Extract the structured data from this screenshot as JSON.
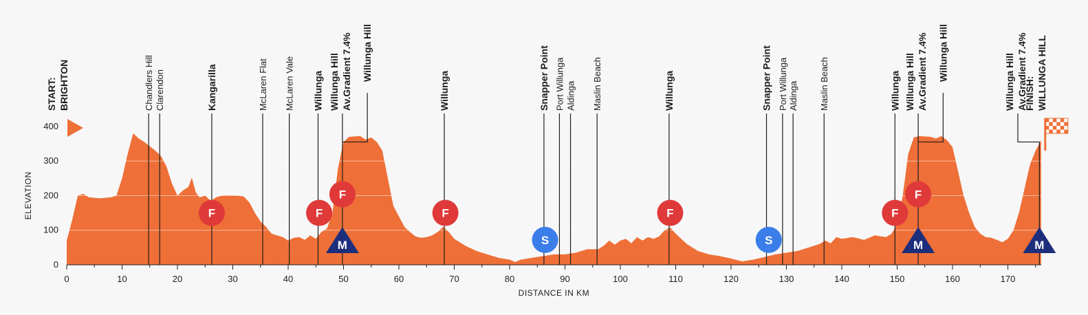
{
  "colors": {
    "profile": "#ee6f37",
    "feed": "#e0393a",
    "sprint": "#3b7de9",
    "kom": "#1c2e7c",
    "grid": "#ffffff",
    "text": "#1d1d1d",
    "background": "#f7f7f7"
  },
  "chart_data": {
    "type": "area",
    "xlabel": "DISTANCE IN KM",
    "ylabel": "ELEVATION",
    "xlim": [
      0,
      176
    ],
    "ylim": [
      0,
      420
    ],
    "x_ticks": [
      0,
      10,
      20,
      30,
      40,
      50,
      60,
      70,
      80,
      90,
      100,
      110,
      120,
      130,
      140,
      150,
      160,
      170
    ],
    "y_ticks": [
      0,
      100,
      200,
      300,
      400
    ],
    "grid": true,
    "profile": [
      [
        0,
        70
      ],
      [
        1,
        130
      ],
      [
        2,
        200
      ],
      [
        3,
        205
      ],
      [
        4,
        195
      ],
      [
        6,
        192
      ],
      [
        8,
        195
      ],
      [
        9,
        200
      ],
      [
        10,
        250
      ],
      [
        11,
        320
      ],
      [
        12,
        380
      ],
      [
        13,
        365
      ],
      [
        14,
        355
      ],
      [
        16,
        330
      ],
      [
        17,
        315
      ],
      [
        18,
        285
      ],
      [
        19,
        235
      ],
      [
        20,
        200
      ],
      [
        21,
        215
      ],
      [
        22,
        225
      ],
      [
        22.6,
        252
      ],
      [
        23.3,
        210
      ],
      [
        24,
        195
      ],
      [
        25,
        200
      ],
      [
        26,
        185
      ],
      [
        27,
        195
      ],
      [
        28,
        200
      ],
      [
        29,
        201
      ],
      [
        31,
        200
      ],
      [
        32,
        197
      ],
      [
        33,
        180
      ],
      [
        34,
        150
      ],
      [
        35,
        125
      ],
      [
        36,
        110
      ],
      [
        37,
        90
      ],
      [
        38,
        85
      ],
      [
        39,
        80
      ],
      [
        40,
        70
      ],
      [
        41,
        78
      ],
      [
        42,
        80
      ],
      [
        43,
        72
      ],
      [
        44,
        85
      ],
      [
        45,
        75
      ],
      [
        46,
        95
      ],
      [
        47,
        105
      ],
      [
        48,
        150
      ],
      [
        49,
        280
      ],
      [
        50,
        355
      ],
      [
        51,
        370
      ],
      [
        53,
        372
      ],
      [
        54,
        362
      ],
      [
        55,
        368
      ],
      [
        56,
        355
      ],
      [
        57,
        330
      ],
      [
        58,
        250
      ],
      [
        59,
        170
      ],
      [
        60,
        140
      ],
      [
        61,
        110
      ],
      [
        62,
        95
      ],
      [
        63,
        82
      ],
      [
        64,
        78
      ],
      [
        65,
        80
      ],
      [
        66,
        85
      ],
      [
        67,
        95
      ],
      [
        68,
        110
      ],
      [
        69,
        95
      ],
      [
        70,
        75
      ],
      [
        72,
        55
      ],
      [
        74,
        40
      ],
      [
        76,
        30
      ],
      [
        78,
        20
      ],
      [
        80,
        15
      ],
      [
        81,
        8
      ],
      [
        82,
        15
      ],
      [
        84,
        20
      ],
      [
        86,
        25
      ],
      [
        88,
        30
      ],
      [
        90,
        30
      ],
      [
        92,
        35
      ],
      [
        94,
        45
      ],
      [
        96,
        45
      ],
      [
        97,
        55
      ],
      [
        98,
        70
      ],
      [
        99,
        58
      ],
      [
        100,
        70
      ],
      [
        101,
        75
      ],
      [
        102,
        62
      ],
      [
        103,
        80
      ],
      [
        104,
        70
      ],
      [
        105,
        80
      ],
      [
        106,
        75
      ],
      [
        107,
        82
      ],
      [
        108,
        100
      ],
      [
        109,
        108
      ],
      [
        110,
        90
      ],
      [
        112,
        60
      ],
      [
        114,
        40
      ],
      [
        116,
        30
      ],
      [
        118,
        25
      ],
      [
        120,
        18
      ],
      [
        122,
        10
      ],
      [
        124,
        15
      ],
      [
        126,
        22
      ],
      [
        128,
        30
      ],
      [
        130,
        35
      ],
      [
        132,
        40
      ],
      [
        134,
        50
      ],
      [
        136,
        60
      ],
      [
        137,
        70
      ],
      [
        138,
        62
      ],
      [
        139,
        80
      ],
      [
        140,
        75
      ],
      [
        142,
        80
      ],
      [
        144,
        72
      ],
      [
        146,
        85
      ],
      [
        148,
        80
      ],
      [
        149,
        90
      ],
      [
        150,
        120
      ],
      [
        151,
        200
      ],
      [
        152,
        320
      ],
      [
        153,
        368
      ],
      [
        154,
        372
      ],
      [
        156,
        370
      ],
      [
        157,
        365
      ],
      [
        158,
        372
      ],
      [
        159,
        360
      ],
      [
        160,
        340
      ],
      [
        161,
        270
      ],
      [
        162,
        200
      ],
      [
        163,
        150
      ],
      [
        164,
        110
      ],
      [
        165,
        90
      ],
      [
        166,
        80
      ],
      [
        167,
        78
      ],
      [
        168,
        72
      ],
      [
        169,
        65
      ],
      [
        170,
        75
      ],
      [
        171,
        100
      ],
      [
        172,
        150
      ],
      [
        173,
        220
      ],
      [
        174,
        290
      ],
      [
        175,
        330
      ],
      [
        176,
        360
      ]
    ],
    "locations": [
      {
        "km": 0,
        "label": "START:",
        "label2": "BRIGHTON",
        "bold": true,
        "kind": "start",
        "line": false
      },
      {
        "km": 14.8,
        "label": "Chandlers Hill",
        "label2": "Clarendon",
        "bold": false,
        "kind": "pair",
        "km2": 16.8
      },
      {
        "km": 26.2,
        "label": "Kangarilla",
        "label2": "",
        "bold": true,
        "kind": "single"
      },
      {
        "km": 35.4,
        "label": "McLaren Flat",
        "label2": "",
        "bold": false,
        "kind": "single"
      },
      {
        "km": 40.2,
        "label": "McLaren Vale",
        "label2": "",
        "bold": false,
        "kind": "single"
      },
      {
        "km": 45.4,
        "label": "Willunga",
        "label2": "",
        "bold": true,
        "kind": "single"
      },
      {
        "km": 49.8,
        "label": "Willunga Hill",
        "label2": "Av.Gradient 7.4%",
        "label3": "Willunga Hill",
        "bold": true,
        "kind": "climb",
        "summit_km": 54.3
      },
      {
        "km": 68.2,
        "label": "Willunga",
        "label2": "",
        "bold": true,
        "kind": "single"
      },
      {
        "km": 86.2,
        "label": "Snapper Point",
        "label2": "",
        "bold": true,
        "kind": "single"
      },
      {
        "km": 89.0,
        "label": "Port Willunga",
        "label2": "Aldinga",
        "bold": false,
        "kind": "pair",
        "km2": 91.0
      },
      {
        "km": 95.8,
        "label": "Maslin Beach",
        "label2": "",
        "bold": false,
        "kind": "single"
      },
      {
        "km": 108.8,
        "label": "Willunga",
        "label2": "",
        "bold": true,
        "kind": "single"
      },
      {
        "km": 126.4,
        "label": "Snapper Point",
        "label2": "",
        "bold": true,
        "kind": "single"
      },
      {
        "km": 129.3,
        "label": "Port Willunga",
        "label2": "Aldinga",
        "bold": false,
        "kind": "pair",
        "km2": 131.2
      },
      {
        "km": 136.8,
        "label": "Maslin Beach",
        "label2": "",
        "bold": false,
        "kind": "single"
      },
      {
        "km": 149.6,
        "label": "Willunga",
        "label2": "",
        "bold": true,
        "kind": "single"
      },
      {
        "km": 153.8,
        "label": "Willunga Hill",
        "label2": "Av.Gradient 7.4%",
        "label3": "Willunga Hill",
        "bold": true,
        "kind": "climb",
        "summit_km": 158.3
      },
      {
        "km": 175.7,
        "label": "Willunga Hill",
        "label2": "Av.Gradient 7.4%",
        "bold": true,
        "kind": "finalclimb",
        "label_km": 171.8
      },
      {
        "km": 176,
        "label": "FINISH:",
        "label2": "WILLUNGA HILL",
        "bold": true,
        "kind": "finish",
        "line": false
      }
    ],
    "markers": [
      {
        "type": "F",
        "km": 26.2,
        "elev": 146
      },
      {
        "type": "F",
        "km": 45.6,
        "elev": 146
      },
      {
        "type": "F",
        "km": 49.8,
        "elev": 200
      },
      {
        "type": "F",
        "km": 68.4,
        "elev": 146
      },
      {
        "type": "F",
        "km": 109.0,
        "elev": 146
      },
      {
        "type": "F",
        "km": 149.6,
        "elev": 146
      },
      {
        "type": "F",
        "km": 153.8,
        "elev": 200
      },
      {
        "type": "S",
        "km": 86.4,
        "elev": 68
      },
      {
        "type": "S",
        "km": 126.8,
        "elev": 68
      },
      {
        "type": "M",
        "km": 49.8,
        "elev": 0
      },
      {
        "type": "M",
        "km": 153.8,
        "elev": 0
      },
      {
        "type": "M",
        "km": 175.7,
        "elev": 0
      }
    ]
  }
}
